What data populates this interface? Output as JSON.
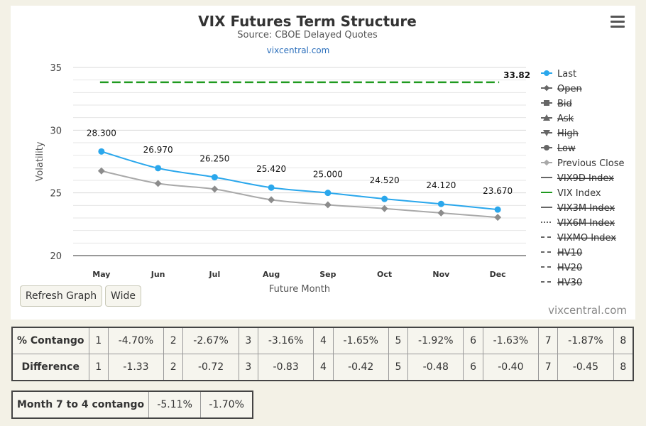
{
  "header": {
    "title": "VIX Futures Term Structure",
    "subtitle": "Source: CBOE Delayed Quotes",
    "link": "vixcentral.com"
  },
  "buttons": {
    "refresh": "Refresh Graph",
    "wide": "Wide"
  },
  "credit": "vixcentral.com",
  "chart_data": {
    "type": "line",
    "categories": [
      "May",
      "Jun",
      "Jul",
      "Aug",
      "Sep",
      "Oct",
      "Nov",
      "Dec"
    ],
    "xlabel": "Future Month",
    "ylabel": "Volatility",
    "ylim": [
      20,
      35
    ],
    "yticks": [
      20,
      25,
      30,
      35
    ],
    "grid": true,
    "legend_position": "right",
    "series": [
      {
        "name": "Last",
        "values": [
          28.3,
          26.97,
          26.25,
          25.42,
          25.0,
          24.52,
          24.12,
          23.67
        ],
        "labels": [
          "28.300",
          "26.970",
          "26.250",
          "25.420",
          "25.000",
          "24.520",
          "24.120",
          "23.670"
        ],
        "color": "#2aa7ec"
      },
      {
        "name": "Previous Close",
        "values": [
          26.75,
          25.75,
          25.3,
          24.45,
          24.05,
          23.75,
          23.4,
          23.05
        ],
        "color": "#a9a9a9"
      },
      {
        "name": "VIX Index",
        "values": [
          33.82,
          33.82,
          33.82,
          33.82,
          33.82,
          33.82,
          33.82,
          33.82
        ],
        "end_label": "33.82",
        "color": "#1f9a1f"
      }
    ],
    "legend": [
      {
        "name": "Last",
        "marker": "circle",
        "active": true,
        "color": "#2aa7ec"
      },
      {
        "name": "Open",
        "marker": "diamond",
        "active": false
      },
      {
        "name": "Bid",
        "marker": "square",
        "active": false
      },
      {
        "name": "Ask",
        "marker": "triangle",
        "active": false
      },
      {
        "name": "High",
        "marker": "triangle-down",
        "active": false
      },
      {
        "name": "Low",
        "marker": "circle",
        "active": false
      },
      {
        "name": "Previous Close",
        "marker": "diamond",
        "active": true,
        "color": "#a9a9a9"
      },
      {
        "name": "VIX9D Index",
        "marker": "line",
        "active": false
      },
      {
        "name": "VIX Index",
        "marker": "line",
        "active": true,
        "color": "#1f9a1f"
      },
      {
        "name": "VIX3M Index",
        "marker": "line",
        "active": false
      },
      {
        "name": "VIX6M Index",
        "marker": "dot",
        "active": false
      },
      {
        "name": "VIXMO Index",
        "marker": "dash",
        "active": false
      },
      {
        "name": "HV10",
        "marker": "dash",
        "active": false
      },
      {
        "name": "HV20",
        "marker": "dash",
        "active": false
      },
      {
        "name": "HV30",
        "marker": "dash",
        "active": false
      }
    ]
  },
  "contango_table": {
    "label": "% Contango",
    "cells": [
      {
        "n": "1",
        "v": "-4.70%"
      },
      {
        "n": "2",
        "v": "-2.67%"
      },
      {
        "n": "3",
        "v": "-3.16%"
      },
      {
        "n": "4",
        "v": "-1.65%"
      },
      {
        "n": "5",
        "v": "-1.92%"
      },
      {
        "n": "6",
        "v": "-1.63%"
      },
      {
        "n": "7",
        "v": "-1.87%"
      },
      {
        "n": "8",
        "v": ""
      }
    ]
  },
  "difference_table": {
    "label": "Difference",
    "cells": [
      {
        "n": "1",
        "v": "-1.33"
      },
      {
        "n": "2",
        "v": "-0.72"
      },
      {
        "n": "3",
        "v": "-0.83"
      },
      {
        "n": "4",
        "v": "-0.42"
      },
      {
        "n": "5",
        "v": "-0.48"
      },
      {
        "n": "6",
        "v": "-0.40"
      },
      {
        "n": "7",
        "v": "-0.45"
      },
      {
        "n": "8",
        "v": ""
      }
    ]
  },
  "month_table": {
    "label": "Month 7 to 4 contango",
    "v1": "-5.11%",
    "v2": "-1.70%"
  }
}
